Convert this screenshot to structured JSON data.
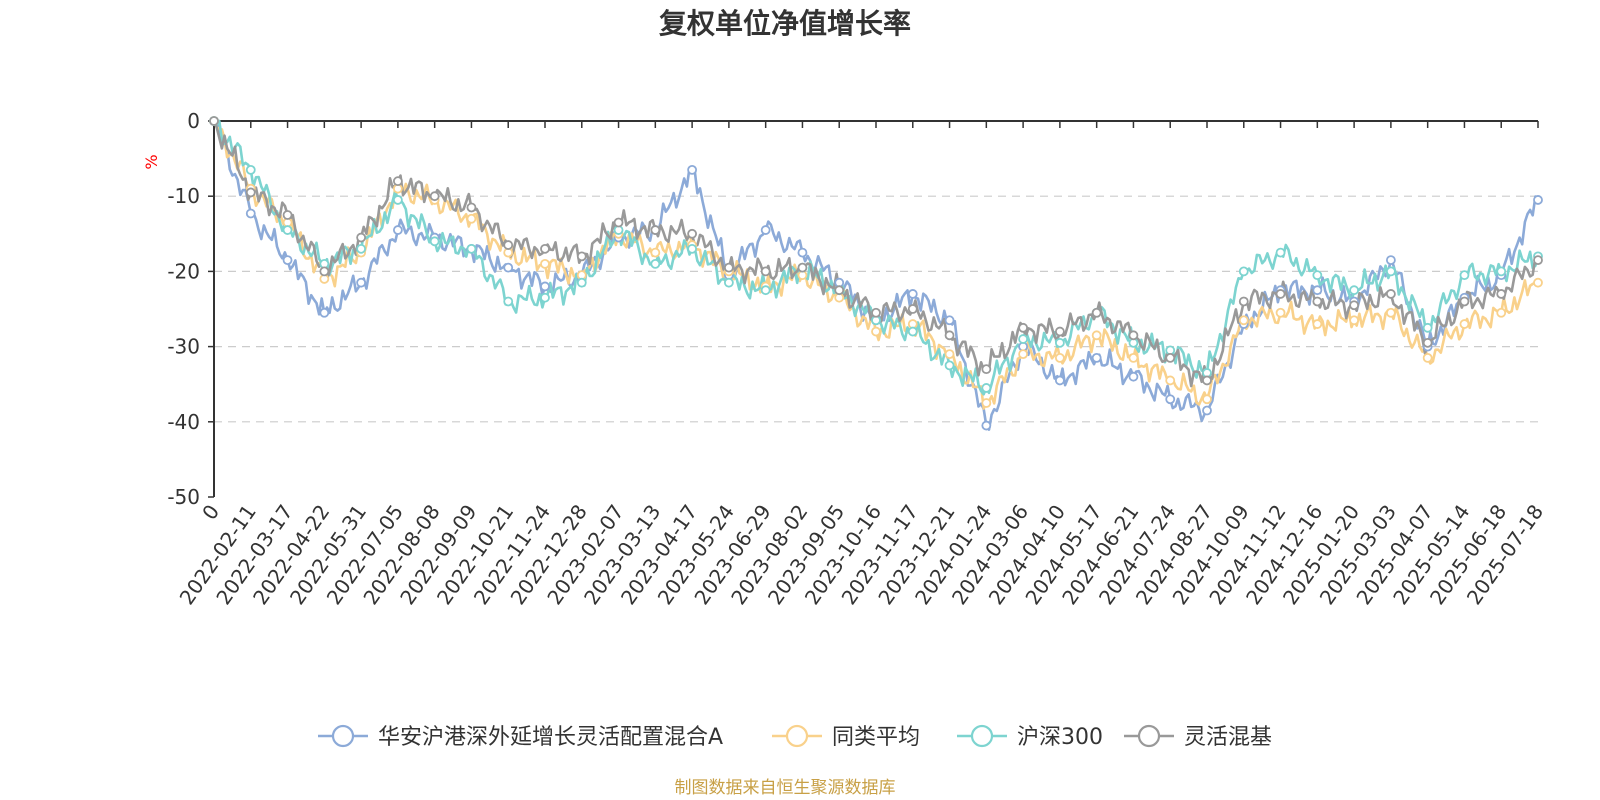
{
  "chart_data": {
    "type": "line",
    "title": "复权单位净值增长率",
    "unit": "%",
    "source": "制图数据来自恒生聚源数据库",
    "ylim": [
      -50,
      0
    ],
    "yticks": [
      "0",
      "-10",
      "-20",
      "-30",
      "-40",
      "-50"
    ],
    "grid": true,
    "legend_position": "bottom",
    "x_tick_labels": [
      "0",
      "2022-02-11",
      "2022-03-17",
      "2022-04-22",
      "2022-05-31",
      "2022-07-05",
      "2022-08-08",
      "2022-09-09",
      "2022-10-21",
      "2022-11-24",
      "2022-12-28",
      "2023-02-07",
      "2023-03-13",
      "2023-04-17",
      "2023-05-24",
      "2023-06-29",
      "2023-08-02",
      "2023-09-05",
      "2023-10-16",
      "2023-11-17",
      "2023-12-21",
      "2024-01-24",
      "2024-03-06",
      "2024-04-10",
      "2024-05-17",
      "2024-06-21",
      "2024-07-24",
      "2024-08-27",
      "2024-10-09",
      "2024-11-12",
      "2024-12-16",
      "2025-01-20",
      "2025-03-03",
      "2025-04-07",
      "2025-05-14",
      "2025-06-18",
      "2025-07-18"
    ],
    "series": [
      {
        "name": "华安沪港深外延增长灵活配置混合A",
        "color": "#8caad8",
        "values": [
          0,
          -12.3,
          -18.5,
          -25.5,
          -21.5,
          -14.5,
          -15.5,
          -17.0,
          -19.5,
          -22.0,
          -20.5,
          -15.5,
          -14.5,
          -6.5,
          -20.5,
          -14.5,
          -17.5,
          -21.5,
          -26.5,
          -23.0,
          -26.5,
          -40.5,
          -30.0,
          -34.5,
          -31.5,
          -34.0,
          -37.0,
          -38.5,
          -27.0,
          -22.5,
          -22.5,
          -24.0,
          -18.5,
          -30.0,
          -23.5,
          -20.5,
          -10.5
        ]
      },
      {
        "name": "同类平均",
        "color": "#f9d18b",
        "values": [
          0,
          -9.0,
          -13.5,
          -21.0,
          -17.5,
          -9.0,
          -10.5,
          -13.0,
          -17.5,
          -19.0,
          -20.5,
          -15.0,
          -17.5,
          -16.5,
          -20.0,
          -22.0,
          -20.5,
          -23.5,
          -28.0,
          -27.0,
          -31.0,
          -37.5,
          -31.0,
          -31.5,
          -28.5,
          -31.5,
          -34.5,
          -37.0,
          -26.5,
          -25.5,
          -27.0,
          -26.5,
          -25.5,
          -31.5,
          -27.0,
          -25.5,
          -21.5
        ]
      },
      {
        "name": "沪深300",
        "color": "#7dd4d0",
        "values": [
          0,
          -6.5,
          -14.5,
          -19.0,
          -17.0,
          -10.5,
          -16.0,
          -17.0,
          -24.0,
          -23.5,
          -21.5,
          -14.5,
          -19.0,
          -17.0,
          -21.5,
          -22.5,
          -19.5,
          -22.5,
          -26.5,
          -28.0,
          -32.5,
          -35.5,
          -29.0,
          -29.5,
          -25.5,
          -29.5,
          -30.5,
          -33.5,
          -20.0,
          -17.5,
          -20.5,
          -22.5,
          -20.0,
          -27.5,
          -20.5,
          -20.0,
          -18.0
        ]
      },
      {
        "name": "灵活混基",
        "color": "#999999",
        "values": [
          0,
          -9.5,
          -12.5,
          -20.0,
          -15.5,
          -8.0,
          -10.0,
          -11.5,
          -16.5,
          -17.0,
          -18.0,
          -13.5,
          -14.5,
          -15.0,
          -19.5,
          -20.0,
          -19.5,
          -22.5,
          -25.5,
          -25.0,
          -28.5,
          -33.0,
          -27.5,
          -28.0,
          -25.5,
          -28.5,
          -31.5,
          -34.5,
          -24.0,
          -23.0,
          -24.0,
          -24.5,
          -23.0,
          -29.5,
          -24.0,
          -23.0,
          -18.5
        ]
      }
    ]
  }
}
